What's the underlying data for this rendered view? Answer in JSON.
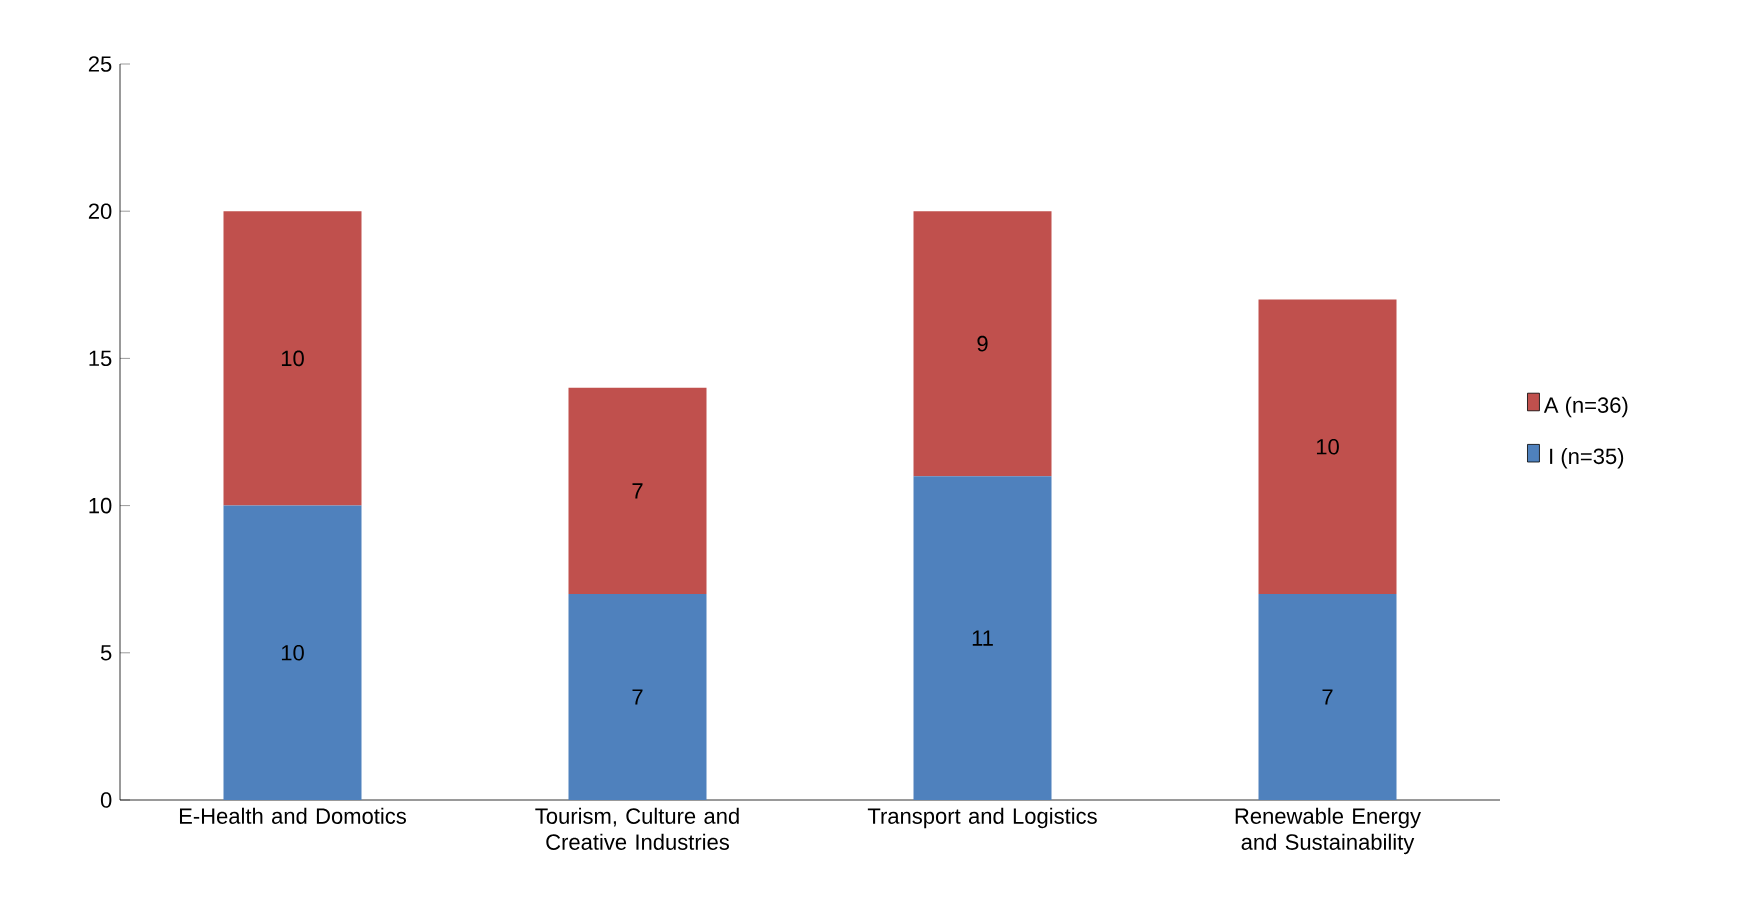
{
  "chart_data": {
    "type": "bar",
    "stacked": true,
    "categories": [
      "E-Health and Domotics",
      "Tourism, Culture and Creative Industries",
      "Transport and Logistics",
      "Renewable Energy and Sustainability"
    ],
    "series": [
      {
        "name": "I (n=35)",
        "color": "#4f81bd",
        "values": [
          10,
          7,
          11,
          7
        ]
      },
      {
        "name": "A (n=36)",
        "color": "#c0504d",
        "values": [
          10,
          7,
          9,
          10
        ]
      }
    ],
    "ylim": [
      0,
      25
    ],
    "yticks": [
      0,
      5,
      10,
      15,
      20,
      25
    ],
    "grid": false,
    "legend": "right",
    "data_labels": true
  }
}
